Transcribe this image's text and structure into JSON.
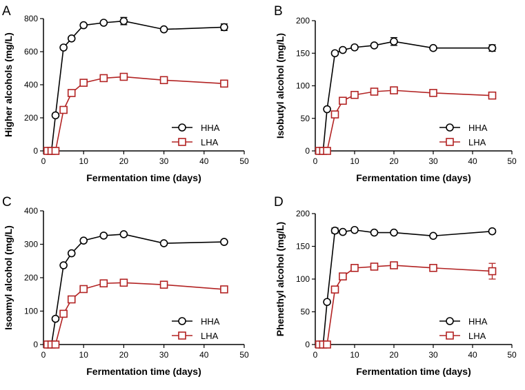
{
  "chart_data": [
    {
      "panel_label": "A",
      "type": "line",
      "xlabel": "Fermentation time (days)",
      "ylabel": "Higher alcohols (mg/L)",
      "xlim": [
        0,
        50
      ],
      "ylim": [
        0,
        800
      ],
      "xticks": [
        0,
        10,
        20,
        30,
        40,
        50
      ],
      "yticks": [
        0,
        200,
        400,
        600,
        800
      ],
      "x": [
        1,
        2,
        3,
        5,
        7,
        10,
        15,
        20,
        30,
        45
      ],
      "legend_position": "bottom-right",
      "grid": false,
      "series": [
        {
          "name": "HHA",
          "color": "#000000",
          "marker": "circle",
          "values": [
            0,
            0,
            215,
            625,
            680,
            760,
            775,
            785,
            735,
            748
          ],
          "errors": [
            0,
            0,
            0,
            0,
            0,
            0,
            0,
            22,
            0,
            20
          ]
        },
        {
          "name": "LHA",
          "color": "#b22222",
          "marker": "square",
          "values": [
            0,
            0,
            0,
            248,
            350,
            412,
            440,
            448,
            428,
            407
          ],
          "errors": [
            0,
            0,
            0,
            0,
            0,
            0,
            0,
            0,
            0,
            0
          ]
        }
      ]
    },
    {
      "panel_label": "B",
      "type": "line",
      "xlabel": "Fermentation time (days)",
      "ylabel": "Isobutyl alcohol (mg/L)",
      "xlim": [
        0,
        50
      ],
      "ylim": [
        0,
        200
      ],
      "xticks": [
        0,
        10,
        20,
        30,
        40,
        50
      ],
      "yticks": [
        0,
        50,
        100,
        150,
        200
      ],
      "x": [
        1,
        2,
        3,
        5,
        7,
        10,
        15,
        20,
        30,
        45
      ],
      "legend_position": "bottom-right",
      "grid": false,
      "series": [
        {
          "name": "HHA",
          "color": "#000000",
          "marker": "circle",
          "values": [
            0,
            0,
            64,
            150,
            155,
            159,
            162,
            168,
            158,
            158
          ],
          "errors": [
            0,
            0,
            0,
            0,
            0,
            0,
            0,
            6,
            0,
            5
          ]
        },
        {
          "name": "LHA",
          "color": "#b22222",
          "marker": "square",
          "values": [
            0,
            0,
            0,
            56,
            77,
            86,
            91,
            93,
            89,
            85
          ],
          "errors": [
            0,
            0,
            0,
            0,
            0,
            0,
            0,
            0,
            0,
            0
          ]
        }
      ]
    },
    {
      "panel_label": "C",
      "type": "line",
      "xlabel": "Fermentation time (days)",
      "ylabel": "Isoamyl alcohol (mg/L)",
      "xlim": [
        0,
        50
      ],
      "ylim": [
        0,
        400
      ],
      "xticks": [
        0,
        10,
        20,
        30,
        40,
        50
      ],
      "yticks": [
        0,
        100,
        200,
        300,
        400
      ],
      "x": [
        1,
        2,
        3,
        5,
        7,
        10,
        15,
        20,
        30,
        45
      ],
      "legend_position": "bottom-right",
      "grid": false,
      "series": [
        {
          "name": "HHA",
          "color": "#000000",
          "marker": "circle",
          "values": [
            0,
            0,
            77,
            237,
            273,
            311,
            326,
            330,
            303,
            307
          ],
          "errors": [
            0,
            0,
            0,
            0,
            0,
            0,
            0,
            0,
            0,
            0
          ]
        },
        {
          "name": "LHA",
          "color": "#b22222",
          "marker": "square",
          "values": [
            0,
            0,
            0,
            92,
            135,
            166,
            183,
            185,
            179,
            165
          ],
          "errors": [
            0,
            0,
            0,
            0,
            0,
            0,
            0,
            0,
            0,
            0
          ]
        }
      ]
    },
    {
      "panel_label": "D",
      "type": "line",
      "xlabel": "Fermentation time (days)",
      "ylabel": "Phenethyl alcohol (mg/L)",
      "xlim": [
        0,
        50
      ],
      "ylim": [
        0,
        200
      ],
      "xticks": [
        0,
        10,
        20,
        30,
        40,
        50
      ],
      "yticks": [
        0,
        50,
        100,
        150,
        200
      ],
      "x": [
        1,
        2,
        3,
        5,
        7,
        10,
        15,
        20,
        30,
        45
      ],
      "legend_position": "bottom-right",
      "grid": false,
      "series": [
        {
          "name": "HHA",
          "color": "#000000",
          "marker": "circle",
          "values": [
            0,
            0,
            65,
            174,
            172,
            175,
            171,
            171,
            166,
            173
          ],
          "errors": [
            0,
            0,
            0,
            4,
            0,
            0,
            0,
            0,
            0,
            0
          ]
        },
        {
          "name": "LHA",
          "color": "#b22222",
          "marker": "square",
          "values": [
            0,
            0,
            0,
            84,
            104,
            117,
            119,
            121,
            117,
            112
          ],
          "errors": [
            0,
            0,
            0,
            0,
            0,
            0,
            0,
            0,
            0,
            12
          ]
        }
      ]
    }
  ]
}
